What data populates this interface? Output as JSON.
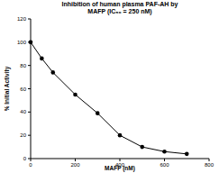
{
  "chart_data": {
    "type": "line",
    "title": [
      "Inhibition of human plasma PAF-AH by",
      "MAFP (IC₅₀ = 250 nM)"
    ],
    "x_label": "MAFP (nM)",
    "y_label": "% Initial Activity",
    "x": [
      0,
      50,
      100,
      200,
      300,
      400,
      500,
      600,
      700
    ],
    "values": [
      100,
      86,
      74,
      55,
      39,
      20,
      10,
      6,
      4
    ],
    "color": "#000000",
    "marker": "circle",
    "xlim": [
      0,
      800
    ],
    "xticks": [
      0,
      200,
      400,
      600,
      800
    ],
    "ylim": [
      0,
      120
    ],
    "yticks": [
      0,
      20,
      40,
      60,
      80,
      100,
      120
    ],
    "grid": false
  }
}
